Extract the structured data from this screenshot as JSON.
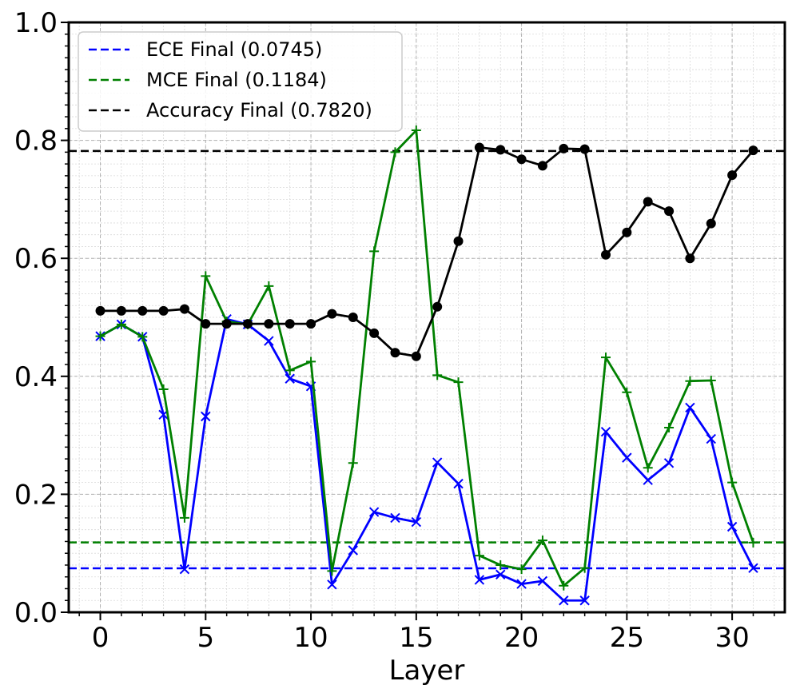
{
  "chart_data": {
    "type": "line",
    "xlabel": "Layer",
    "ylabel": "",
    "xlim": [
      -1.5,
      32.5
    ],
    "ylim": [
      0.0,
      1.0
    ],
    "x": [
      0,
      1,
      2,
      3,
      4,
      5,
      6,
      7,
      8,
      9,
      10,
      11,
      12,
      13,
      14,
      15,
      16,
      17,
      18,
      19,
      20,
      21,
      22,
      23,
      24,
      25,
      26,
      27,
      28,
      29,
      30,
      31
    ],
    "x_ticks": [
      0,
      5,
      10,
      15,
      20,
      25,
      30
    ],
    "x_tick_labels": [
      "0",
      "5",
      "10",
      "15",
      "20",
      "25",
      "30"
    ],
    "y_ticks": [
      0.0,
      0.2,
      0.4,
      0.6,
      0.8,
      1.0
    ],
    "y_tick_labels": [
      "0.0",
      "0.2",
      "0.4",
      "0.6",
      "0.8",
      "1.0"
    ],
    "grid": true,
    "minor_grid": true,
    "legend_position": "top-left",
    "series": [
      {
        "key": "ece",
        "color": "#0000ff",
        "marker": "x",
        "values": [
          0.468,
          0.488,
          0.467,
          0.335,
          0.073,
          0.332,
          0.497,
          0.488,
          0.46,
          0.396,
          0.383,
          0.047,
          0.105,
          0.17,
          0.16,
          0.153,
          0.254,
          0.218,
          0.055,
          0.064,
          0.048,
          0.053,
          0.02,
          0.02,
          0.306,
          0.262,
          0.224,
          0.253,
          0.347,
          0.294,
          0.145,
          0.075
        ]
      },
      {
        "key": "mce",
        "color": "#008000",
        "marker": "+",
        "values": [
          0.468,
          0.488,
          0.467,
          0.378,
          0.16,
          0.57,
          0.493,
          0.488,
          0.553,
          0.41,
          0.425,
          0.07,
          0.253,
          0.612,
          0.78,
          0.817,
          0.402,
          0.39,
          0.096,
          0.08,
          0.073,
          0.122,
          0.045,
          0.075,
          0.432,
          0.373,
          0.245,
          0.313,
          0.392,
          0.393,
          0.22,
          0.118
        ]
      },
      {
        "key": "accuracy",
        "color": "#000000",
        "marker": "o",
        "values": [
          0.511,
          0.511,
          0.511,
          0.511,
          0.514,
          0.489,
          0.489,
          0.489,
          0.489,
          0.489,
          0.489,
          0.506,
          0.5,
          0.473,
          0.44,
          0.434,
          0.518,
          0.629,
          0.788,
          0.784,
          0.768,
          0.757,
          0.786,
          0.785,
          0.606,
          0.644,
          0.696,
          0.68,
          0.6,
          0.659,
          0.741,
          0.783
        ]
      }
    ],
    "reference_lines": [
      {
        "name": "ECE Final (0.0745)",
        "value": 0.0745,
        "color": "#0000ff"
      },
      {
        "name": "MCE Final (0.1184)",
        "value": 0.1184,
        "color": "#008000"
      },
      {
        "name": "Accuracy Final (0.7820)",
        "value": 0.782,
        "color": "#000000"
      }
    ]
  }
}
